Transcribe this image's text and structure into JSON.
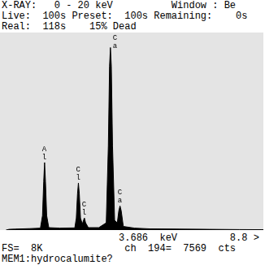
{
  "chart_data": {
    "type": "area",
    "header": [
      "X-RAY:   0 - 20 keV          Window : Be",
      "Live:  100s Preset:  100s Remaining:    0s",
      "Real:  118s    15% Dead"
    ],
    "footer": [
      "                    3.686  keV         8.8 >",
      "FS=  8K              ch  194=  7569  cts",
      "MEM1:hydrocalumite?"
    ],
    "series": [
      {
        "name": null,
        "color": "#000000",
        "x": [
          0.2,
          0.3,
          0.5,
          1.0,
          1.35,
          1.42,
          1.46,
          1.49,
          1.52,
          1.56,
          1.63,
          2.0,
          2.5,
          2.55,
          2.59,
          2.62,
          2.65,
          2.69,
          2.75,
          2.79,
          2.82,
          2.86,
          2.95,
          3.3,
          3.55,
          3.62,
          3.66,
          3.69,
          3.72,
          3.76,
          3.83,
          3.92,
          3.97,
          4.01,
          4.05,
          4.12,
          4.5,
          5.0,
          6.0,
          7.0,
          8.0,
          8.8
        ],
        "values": [
          0,
          30,
          40,
          60,
          80,
          600,
          2000,
          2800,
          2000,
          600,
          100,
          80,
          90,
          500,
          1500,
          1950,
          1500,
          500,
          250,
          400,
          500,
          300,
          100,
          100,
          300,
          3500,
          6800,
          7569,
          6800,
          3500,
          400,
          300,
          800,
          1000,
          800,
          150,
          80,
          50,
          40,
          30,
          20,
          15
        ]
      }
    ],
    "annotations": [
      {
        "text": "Al",
        "x": 1.49
      },
      {
        "text": "Cl",
        "x": 2.62
      },
      {
        "text": "Cl",
        "x": 2.82
      },
      {
        "text": "Ca",
        "x": 3.69
      },
      {
        "text": "Ca",
        "x": 4.01
      }
    ],
    "xlim": [
      0,
      8.8
    ],
    "ylim": [
      0,
      8192
    ],
    "grid": false,
    "tick_labels": false
  }
}
